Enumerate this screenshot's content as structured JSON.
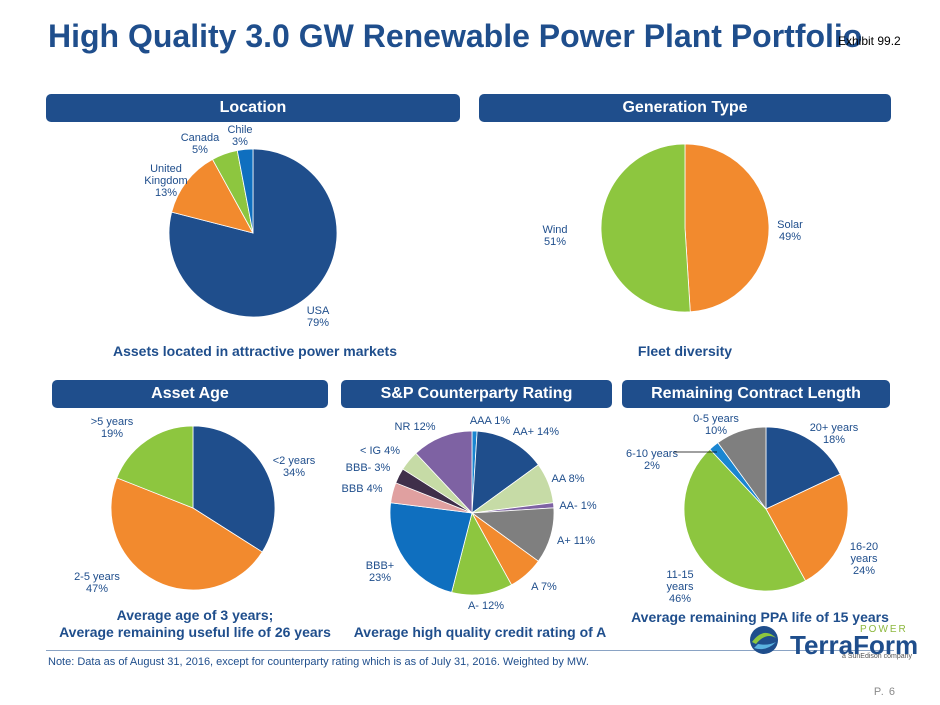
{
  "title": "High Quality 3.0 GW Renewable Power Plant Portfolio",
  "exhibit": "Exhibit 99.2",
  "sections": {
    "location": "Location",
    "generation": "Generation Type",
    "asset_age": "Asset Age",
    "rating": "S&P Counterparty Rating",
    "contract": "Remaining Contract Length"
  },
  "subtitles": {
    "location": "Assets located in attractive power markets",
    "generation": "Fleet diversity",
    "asset_age_1": "Average age of 3 years;",
    "asset_age_2": "Average remaining useful life of 26 years",
    "rating": "Average high quality credit rating of A",
    "contract": "Average remaining PPA life of 15 years"
  },
  "note": "Note: Data as of August 31, 2016, except for counterparty rating which is as of July 31, 2016. Weighted by MW.",
  "page_number": "P. 6",
  "logo": {
    "power": "POWER",
    "name": "TerraForm",
    "tagline": "a SunEdison company"
  },
  "colors": {
    "navy": "#1f4e8c",
    "orange": "#f28a2e",
    "green": "#8dc63f",
    "blue": "#0f6fbf",
    "lightgreen": "#c6dba6",
    "purple": "#7e62a3",
    "gray": "#7f7f7f",
    "pink": "#e0a0a0",
    "darkpurple": "#3f2f4a",
    "brightblue": "#1a86d1"
  },
  "chart_data": [
    {
      "id": "location",
      "type": "pie",
      "title": "Location",
      "categories": [
        "USA",
        "United Kingdom",
        "Canada",
        "Chile"
      ],
      "values": [
        79,
        13,
        5,
        3
      ],
      "labels": [
        "USA\n79%",
        "United\nKingdom\n13%",
        "Canada\n5%",
        "Chile\n3%"
      ],
      "colors": [
        "#1f4e8c",
        "#f28a2e",
        "#8dc63f",
        "#0f6fbf"
      ]
    },
    {
      "id": "generation",
      "type": "pie",
      "title": "Generation Type",
      "categories": [
        "Solar",
        "Wind"
      ],
      "values": [
        49,
        51
      ],
      "labels": [
        "Solar\n49%",
        "Wind\n51%"
      ],
      "colors": [
        "#f28a2e",
        "#8dc63f"
      ]
    },
    {
      "id": "age",
      "type": "pie",
      "title": "Asset Age",
      "categories": [
        "<2 years",
        "2-5 years",
        ">5 years"
      ],
      "values": [
        34,
        47,
        19
      ],
      "labels": [
        "<2 years\n34%",
        "2-5 years\n47%",
        ">5 years\n19%"
      ],
      "colors": [
        "#1f4e8c",
        "#f28a2e",
        "#8dc63f"
      ]
    },
    {
      "id": "rating",
      "type": "pie",
      "title": "S&P Counterparty Rating",
      "categories": [
        "AAA",
        "AA+",
        "AA",
        "AA-",
        "A+",
        "A",
        "A-",
        "BBB+",
        "BBB",
        "BBB-",
        "< IG",
        "NR"
      ],
      "values": [
        1,
        14,
        8,
        1,
        11,
        7,
        12,
        23,
        4,
        3,
        4,
        12
      ],
      "labels": [
        "AAA 1%",
        "AA+ 14%",
        "AA 8%",
        "AA- 1%",
        "A+ 11%",
        "A 7%",
        "A- 12%",
        "BBB+\n23%",
        "BBB 4%",
        "BBB- 3%",
        "< IG 4%",
        "NR 12%"
      ],
      "colors": [
        "#1a86d1",
        "#1f4e8c",
        "#c6dba6",
        "#7e62a3",
        "#7f7f7f",
        "#f28a2e",
        "#8dc63f",
        "#0f6fbf",
        "#e0a0a0",
        "#3f2f4a",
        "#c6dba6",
        "#7e62a3"
      ]
    },
    {
      "id": "contract",
      "type": "pie",
      "title": "Remaining Contract Length",
      "categories": [
        "20+ years",
        "16-20 years",
        "11-15 years",
        "6-10 years",
        "0-5 years"
      ],
      "values": [
        18,
        24,
        46,
        2,
        10
      ],
      "labels": [
        "20+ years\n18%",
        "16-20\nyears\n24%",
        "11-15\nyears\n46%",
        "6-10 years\n2%",
        "0-5 years\n10%"
      ],
      "colors": [
        "#1f4e8c",
        "#f28a2e",
        "#8dc63f",
        "#1a86d1",
        "#7f7f7f"
      ]
    }
  ]
}
